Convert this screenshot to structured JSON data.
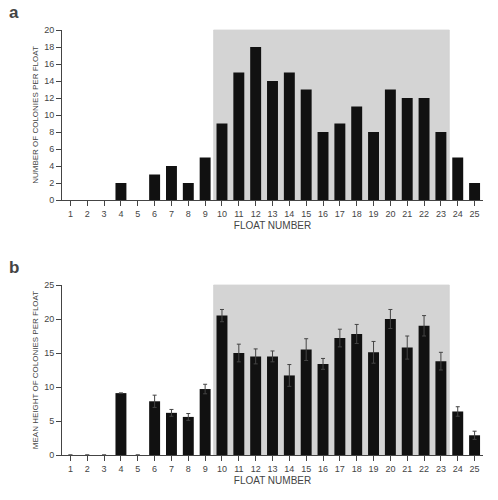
{
  "chart_data": [
    {
      "type": "bar",
      "title": "a",
      "categories": [
        1,
        2,
        3,
        4,
        5,
        6,
        7,
        8,
        9,
        10,
        11,
        12,
        13,
        14,
        15,
        16,
        17,
        18,
        19,
        20,
        21,
        22,
        23,
        24,
        25
      ],
      "values": [
        0,
        0,
        0,
        2,
        0,
        3,
        4,
        2,
        5,
        9,
        15,
        18,
        14,
        15,
        13,
        8,
        9,
        11,
        8,
        13,
        12,
        12,
        8,
        5,
        2
      ],
      "color": "#111111",
      "xlabel": "FLOAT NUMBER",
      "ylabel": "NUMBER OF COLONIES PER FLOAT",
      "ylim": [
        0,
        20
      ],
      "yticks": [
        0,
        2,
        4,
        6,
        8,
        10,
        12,
        14,
        16,
        18,
        20
      ],
      "grid": false,
      "shaded_span": {
        "start": 10,
        "end": 23,
        "color": "#d4d4d4"
      }
    },
    {
      "type": "bar",
      "title": "b",
      "categories": [
        1,
        2,
        3,
        4,
        5,
        6,
        7,
        8,
        9,
        10,
        11,
        12,
        13,
        14,
        15,
        16,
        17,
        18,
        19,
        20,
        21,
        22,
        23,
        24,
        25
      ],
      "values": [
        0,
        0,
        0,
        9.1,
        0,
        7.9,
        6.2,
        5.6,
        9.7,
        20.5,
        15.0,
        14.5,
        14.5,
        11.7,
        15.5,
        13.4,
        17.2,
        17.8,
        15.1,
        20.0,
        15.8,
        19.0,
        13.8,
        6.4,
        2.9
      ],
      "errors": [
        0,
        0,
        0,
        0,
        0,
        0.9,
        0.5,
        0.5,
        0.7,
        0.9,
        1.3,
        1.1,
        0.8,
        1.6,
        1.6,
        0.8,
        1.3,
        1.4,
        1.6,
        1.4,
        1.7,
        1.5,
        1.3,
        0.7,
        0.6
      ],
      "color": "#111111",
      "xlabel": "FLOAT NUMBER",
      "ylabel": "MEAN HEIGHT OF COLONIES PER FLOAT",
      "ylim": [
        0,
        25
      ],
      "yticks": [
        0,
        5,
        10,
        15,
        20,
        25
      ],
      "grid": false,
      "shaded_span": {
        "start": 10,
        "end": 23,
        "color": "#d4d4d4"
      }
    }
  ]
}
